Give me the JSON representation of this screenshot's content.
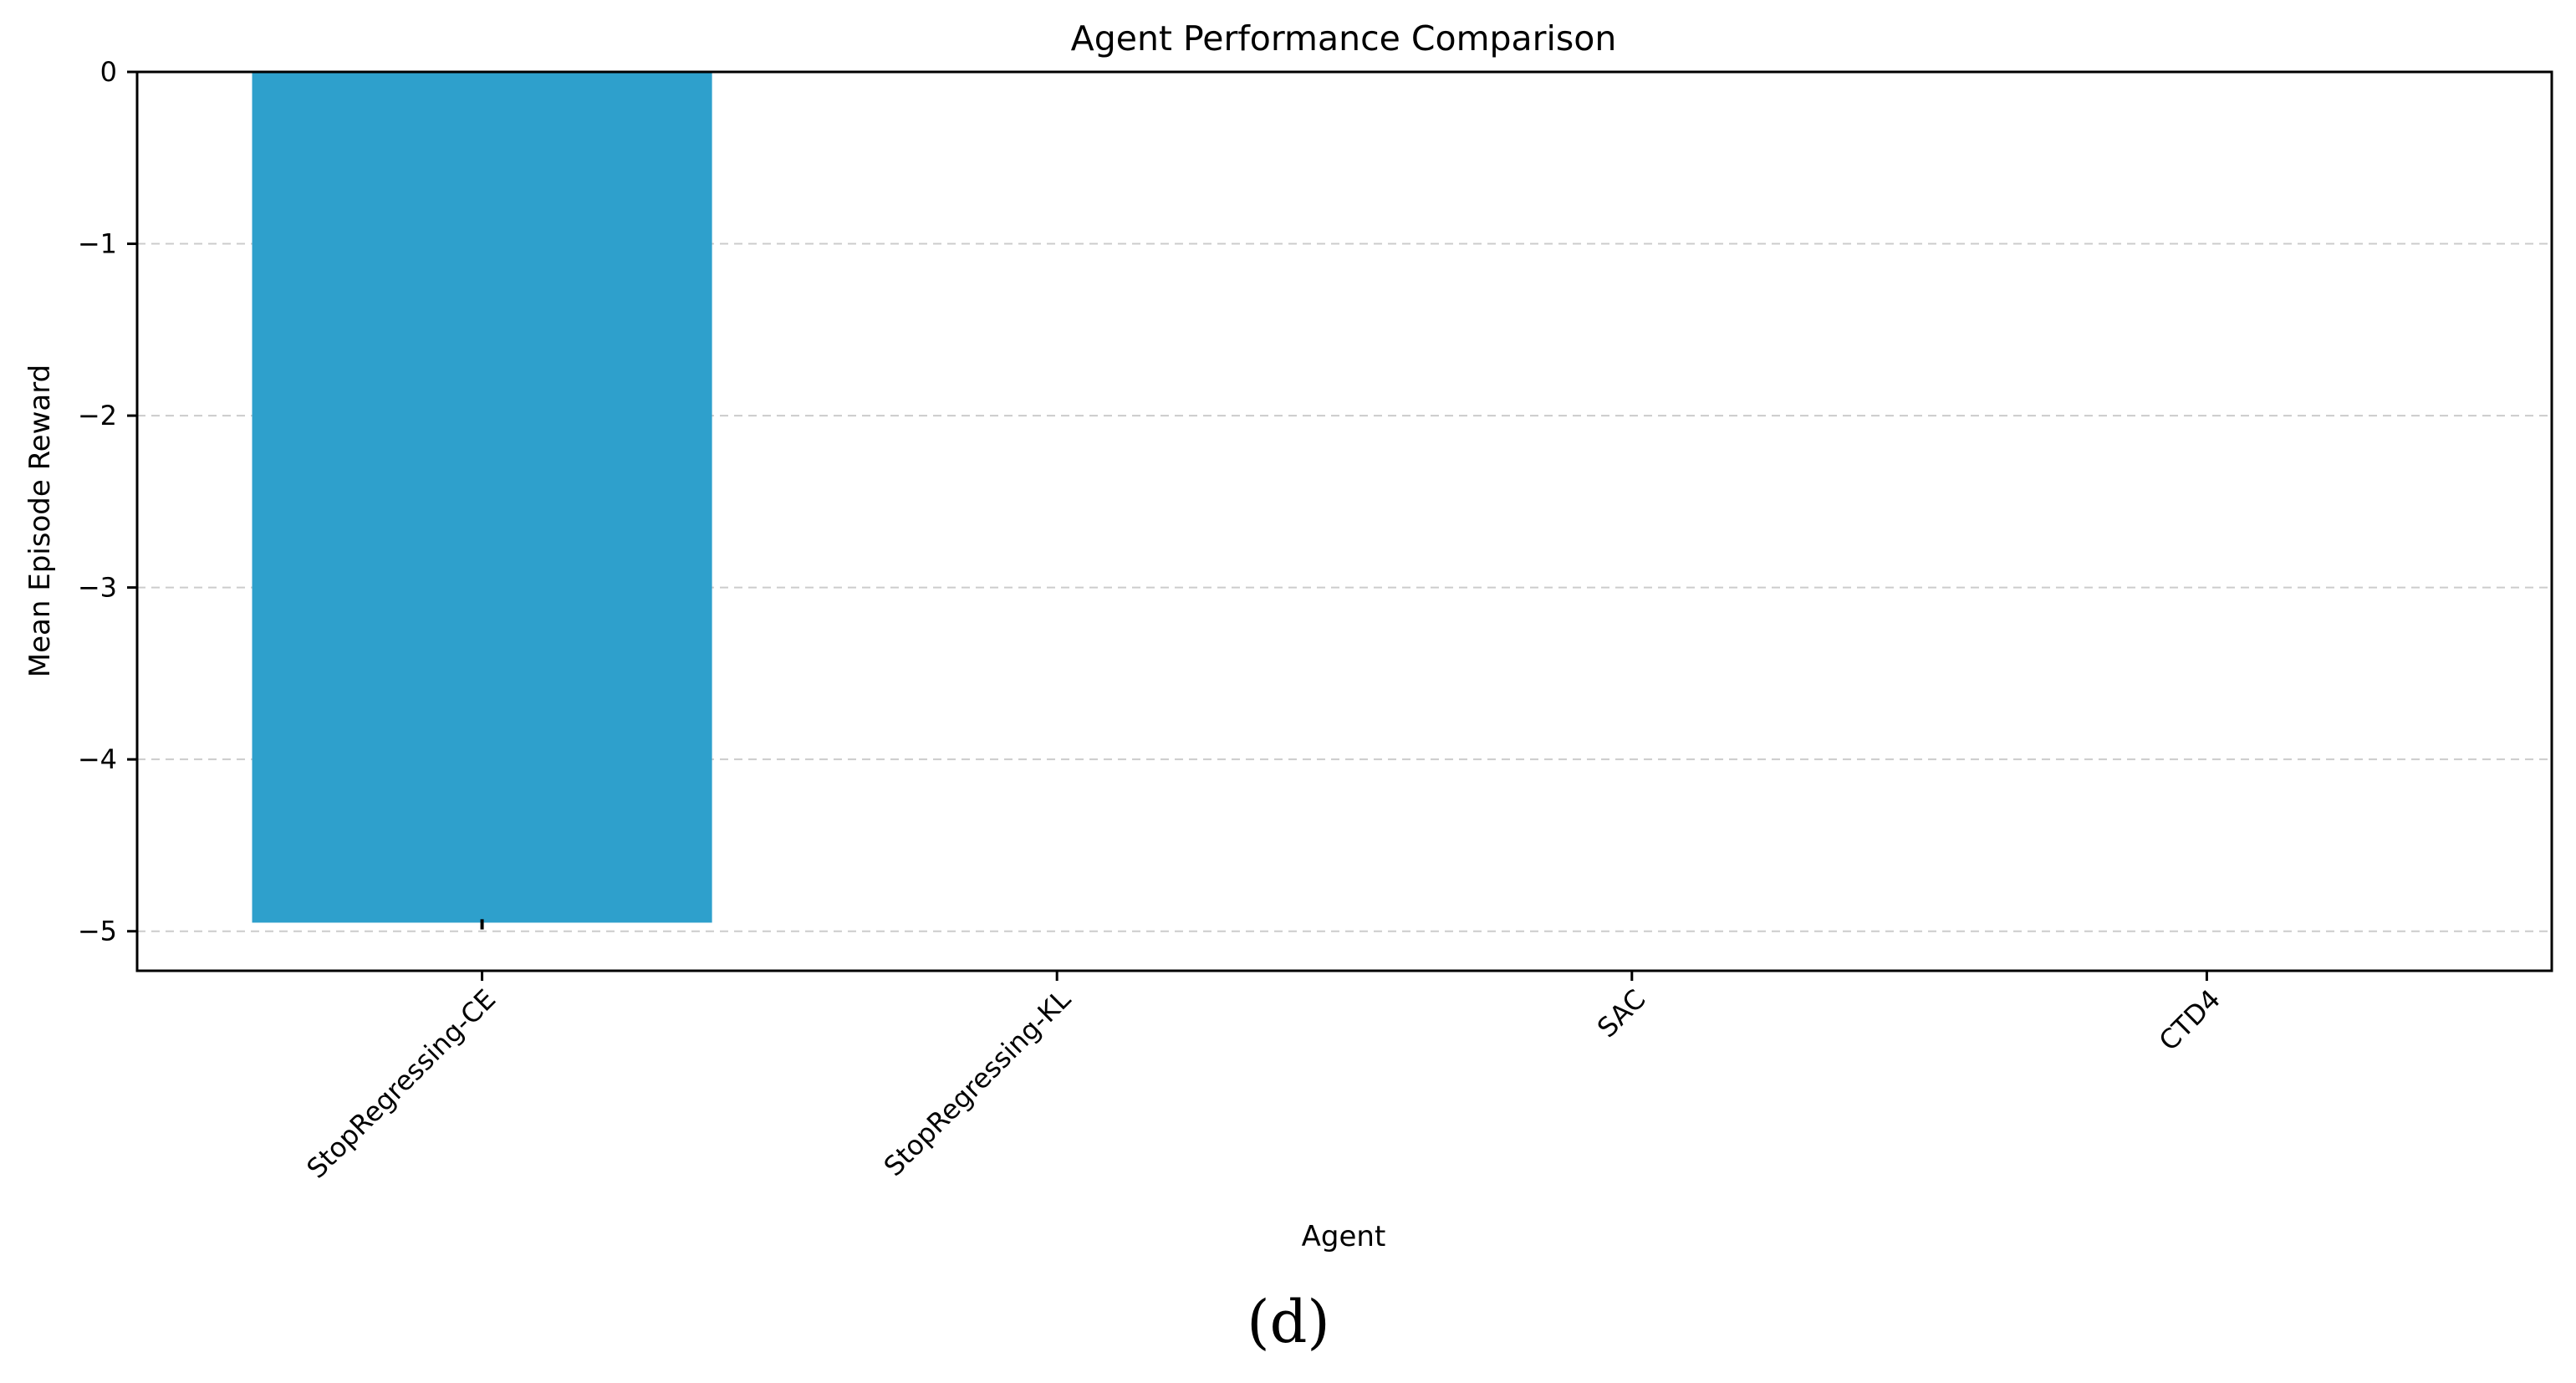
{
  "chart_data": {
    "type": "bar",
    "title": "Agent Performance Comparison",
    "xlabel": "Agent",
    "ylabel": "Mean Episode Reward",
    "categories": [
      "StopRegressing-CE",
      "StopRegressing-KL",
      "SAC",
      "CTD4"
    ],
    "values": [
      -4.95,
      0,
      0,
      0
    ],
    "errors": [
      0.02,
      0,
      0,
      0
    ],
    "ylim": [
      -5.23,
      0
    ],
    "yticks": [
      0,
      -1,
      -2,
      -3,
      -4,
      -5
    ],
    "ytick_labels": [
      "0",
      "−1",
      "−2",
      "−3",
      "−4",
      "−5"
    ],
    "grid": "y-dashed",
    "bar_color": "#2ea0cc",
    "panel_label": "(d)"
  }
}
